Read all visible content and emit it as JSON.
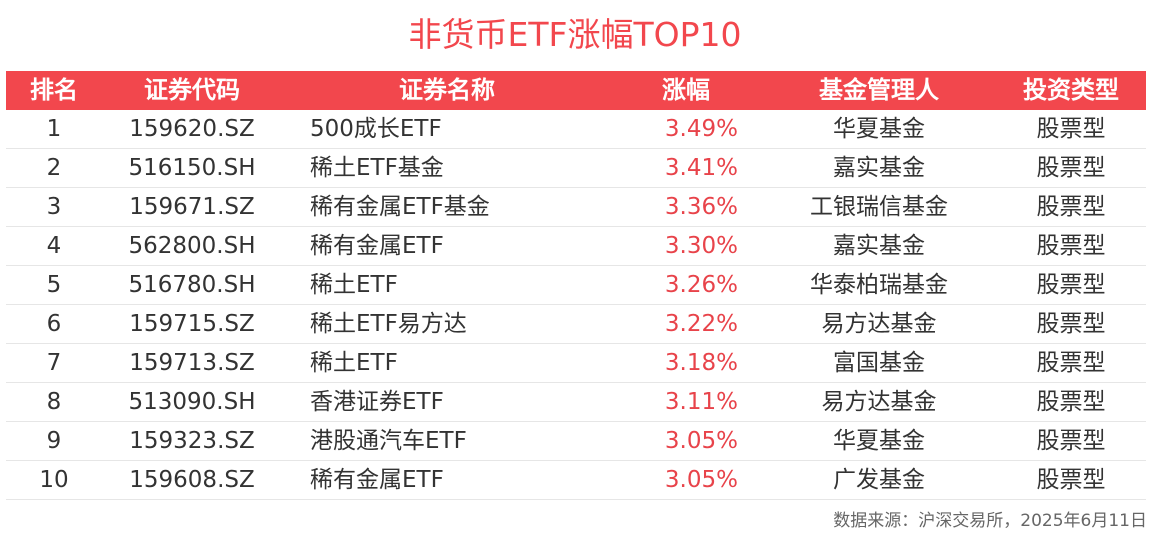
{
  "title": "非货币ETF涨幅TOP10",
  "colors": {
    "accent": "#f2474d",
    "change_text": "#e8434a"
  },
  "headers": {
    "rank": "排名",
    "code": "证券代码",
    "name": "证券名称",
    "change": "涨幅",
    "manager": "基金管理人",
    "type": "投资类型"
  },
  "rows": [
    {
      "rank": "1",
      "code": "159620.SZ",
      "name": "500成长ETF",
      "change": "3.49%",
      "manager": "华夏基金",
      "type": "股票型"
    },
    {
      "rank": "2",
      "code": "516150.SH",
      "name": "稀土ETF基金",
      "change": "3.41%",
      "manager": "嘉实基金",
      "type": "股票型"
    },
    {
      "rank": "3",
      "code": "159671.SZ",
      "name": "稀有金属ETF基金",
      "change": "3.36%",
      "manager": "工银瑞信基金",
      "type": "股票型"
    },
    {
      "rank": "4",
      "code": "562800.SH",
      "name": "稀有金属ETF",
      "change": "3.30%",
      "manager": "嘉实基金",
      "type": "股票型"
    },
    {
      "rank": "5",
      "code": "516780.SH",
      "name": "稀土ETF",
      "change": "3.26%",
      "manager": "华泰柏瑞基金",
      "type": "股票型"
    },
    {
      "rank": "6",
      "code": "159715.SZ",
      "name": "稀土ETF易方达",
      "change": "3.22%",
      "manager": "易方达基金",
      "type": "股票型"
    },
    {
      "rank": "7",
      "code": "159713.SZ",
      "name": "稀土ETF",
      "change": "3.18%",
      "manager": "富国基金",
      "type": "股票型"
    },
    {
      "rank": "8",
      "code": "513090.SH",
      "name": "香港证券ETF",
      "change": "3.11%",
      "manager": "易方达基金",
      "type": "股票型"
    },
    {
      "rank": "9",
      "code": "159323.SZ",
      "name": "港股通汽车ETF",
      "change": "3.05%",
      "manager": "华夏基金",
      "type": "股票型"
    },
    {
      "rank": "10",
      "code": "159608.SZ",
      "name": "稀有金属ETF",
      "change": "3.05%",
      "manager": "广发基金",
      "type": "股票型"
    }
  ],
  "source": "数据来源：沪深交易所，2025年6月11日"
}
